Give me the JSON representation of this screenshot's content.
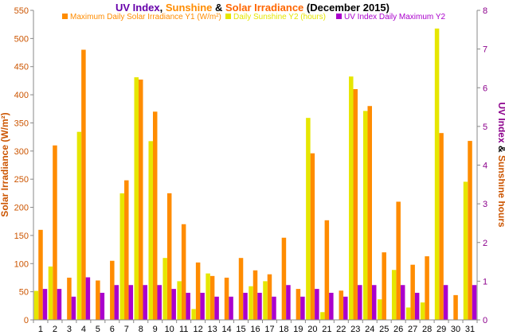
{
  "colors": {
    "uv": "#aa00cc",
    "sunshine": "#e6e600",
    "irradiance": "#ff8c00",
    "left_axis": "#cc5500",
    "right_axis": "#8c008c",
    "title_uv": "#6600aa",
    "title_sunshine": "#ff8c00",
    "title_irradiance": "#ff6600",
    "title_dark": "#000000"
  },
  "chart_data": {
    "type": "bar",
    "title_parts": [
      "UV Index",
      ", ",
      "Sunshine",
      " & ",
      "Solar Irradiance",
      "  (December 2015)"
    ],
    "ylabel_left": "Solar Irradiance (W/m²)",
    "ylabel_right_parts": [
      "UV Index",
      " & ",
      "Sunshine hours"
    ],
    "y_left_lim": [
      0,
      550
    ],
    "y_left_ticks": [
      "0",
      "50",
      "100",
      "150",
      "200",
      "250",
      "300",
      "350",
      "400",
      "450",
      "500",
      "550"
    ],
    "y_right_lim": [
      0,
      8
    ],
    "y_right_ticks": [
      "0",
      "1",
      "2",
      "3",
      "4",
      "5",
      "6",
      "7",
      "8"
    ],
    "categories": [
      "1",
      "2",
      "3",
      "4",
      "5",
      "6",
      "7",
      "8",
      "9",
      "10",
      "11",
      "12",
      "13",
      "14",
      "15",
      "16",
      "17",
      "18",
      "19",
      "20",
      "21",
      "22",
      "23",
      "24",
      "25",
      "26",
      "27",
      "28",
      "29",
      "30",
      "31"
    ],
    "legend_position": "top",
    "grid": false,
    "series": [
      {
        "name": "Maximum Daily Solar Irradiance Y1 (W/m²)",
        "axis": "left",
        "values": [
          160,
          310,
          75,
          480,
          70,
          105,
          248,
          427,
          370,
          225,
          170,
          102,
          78,
          75,
          110,
          88,
          81,
          146,
          55,
          296,
          177,
          52,
          410,
          380,
          120,
          210,
          98,
          113,
          332,
          44,
          318
        ]
      },
      {
        "name": "Daily Sunshine Y2 (hours)",
        "axis": "right",
        "values": [
          0.75,
          1.38,
          0,
          4.86,
          0,
          0,
          3.27,
          6.27,
          4.62,
          1.6,
          1.0,
          0.28,
          1.2,
          0,
          0,
          0.87,
          1.0,
          0,
          0,
          5.22,
          0.2,
          0,
          6.29,
          5.4,
          0.53,
          1.29,
          0.32,
          0.45,
          7.53,
          0,
          3.57
        ]
      },
      {
        "name": "UV Index Daily Maximum Y2",
        "axis": "right",
        "values": [
          0.8,
          0.8,
          0.6,
          1.1,
          0.7,
          0.9,
          0.9,
          0.9,
          0.9,
          0.8,
          0.7,
          0.7,
          0.6,
          0.6,
          0.7,
          0.7,
          0.6,
          0.9,
          0.6,
          0.8,
          0.7,
          0.6,
          0.9,
          0.9,
          0,
          0.9,
          0.7,
          0,
          0.9,
          0,
          0.9
        ]
      }
    ]
  }
}
